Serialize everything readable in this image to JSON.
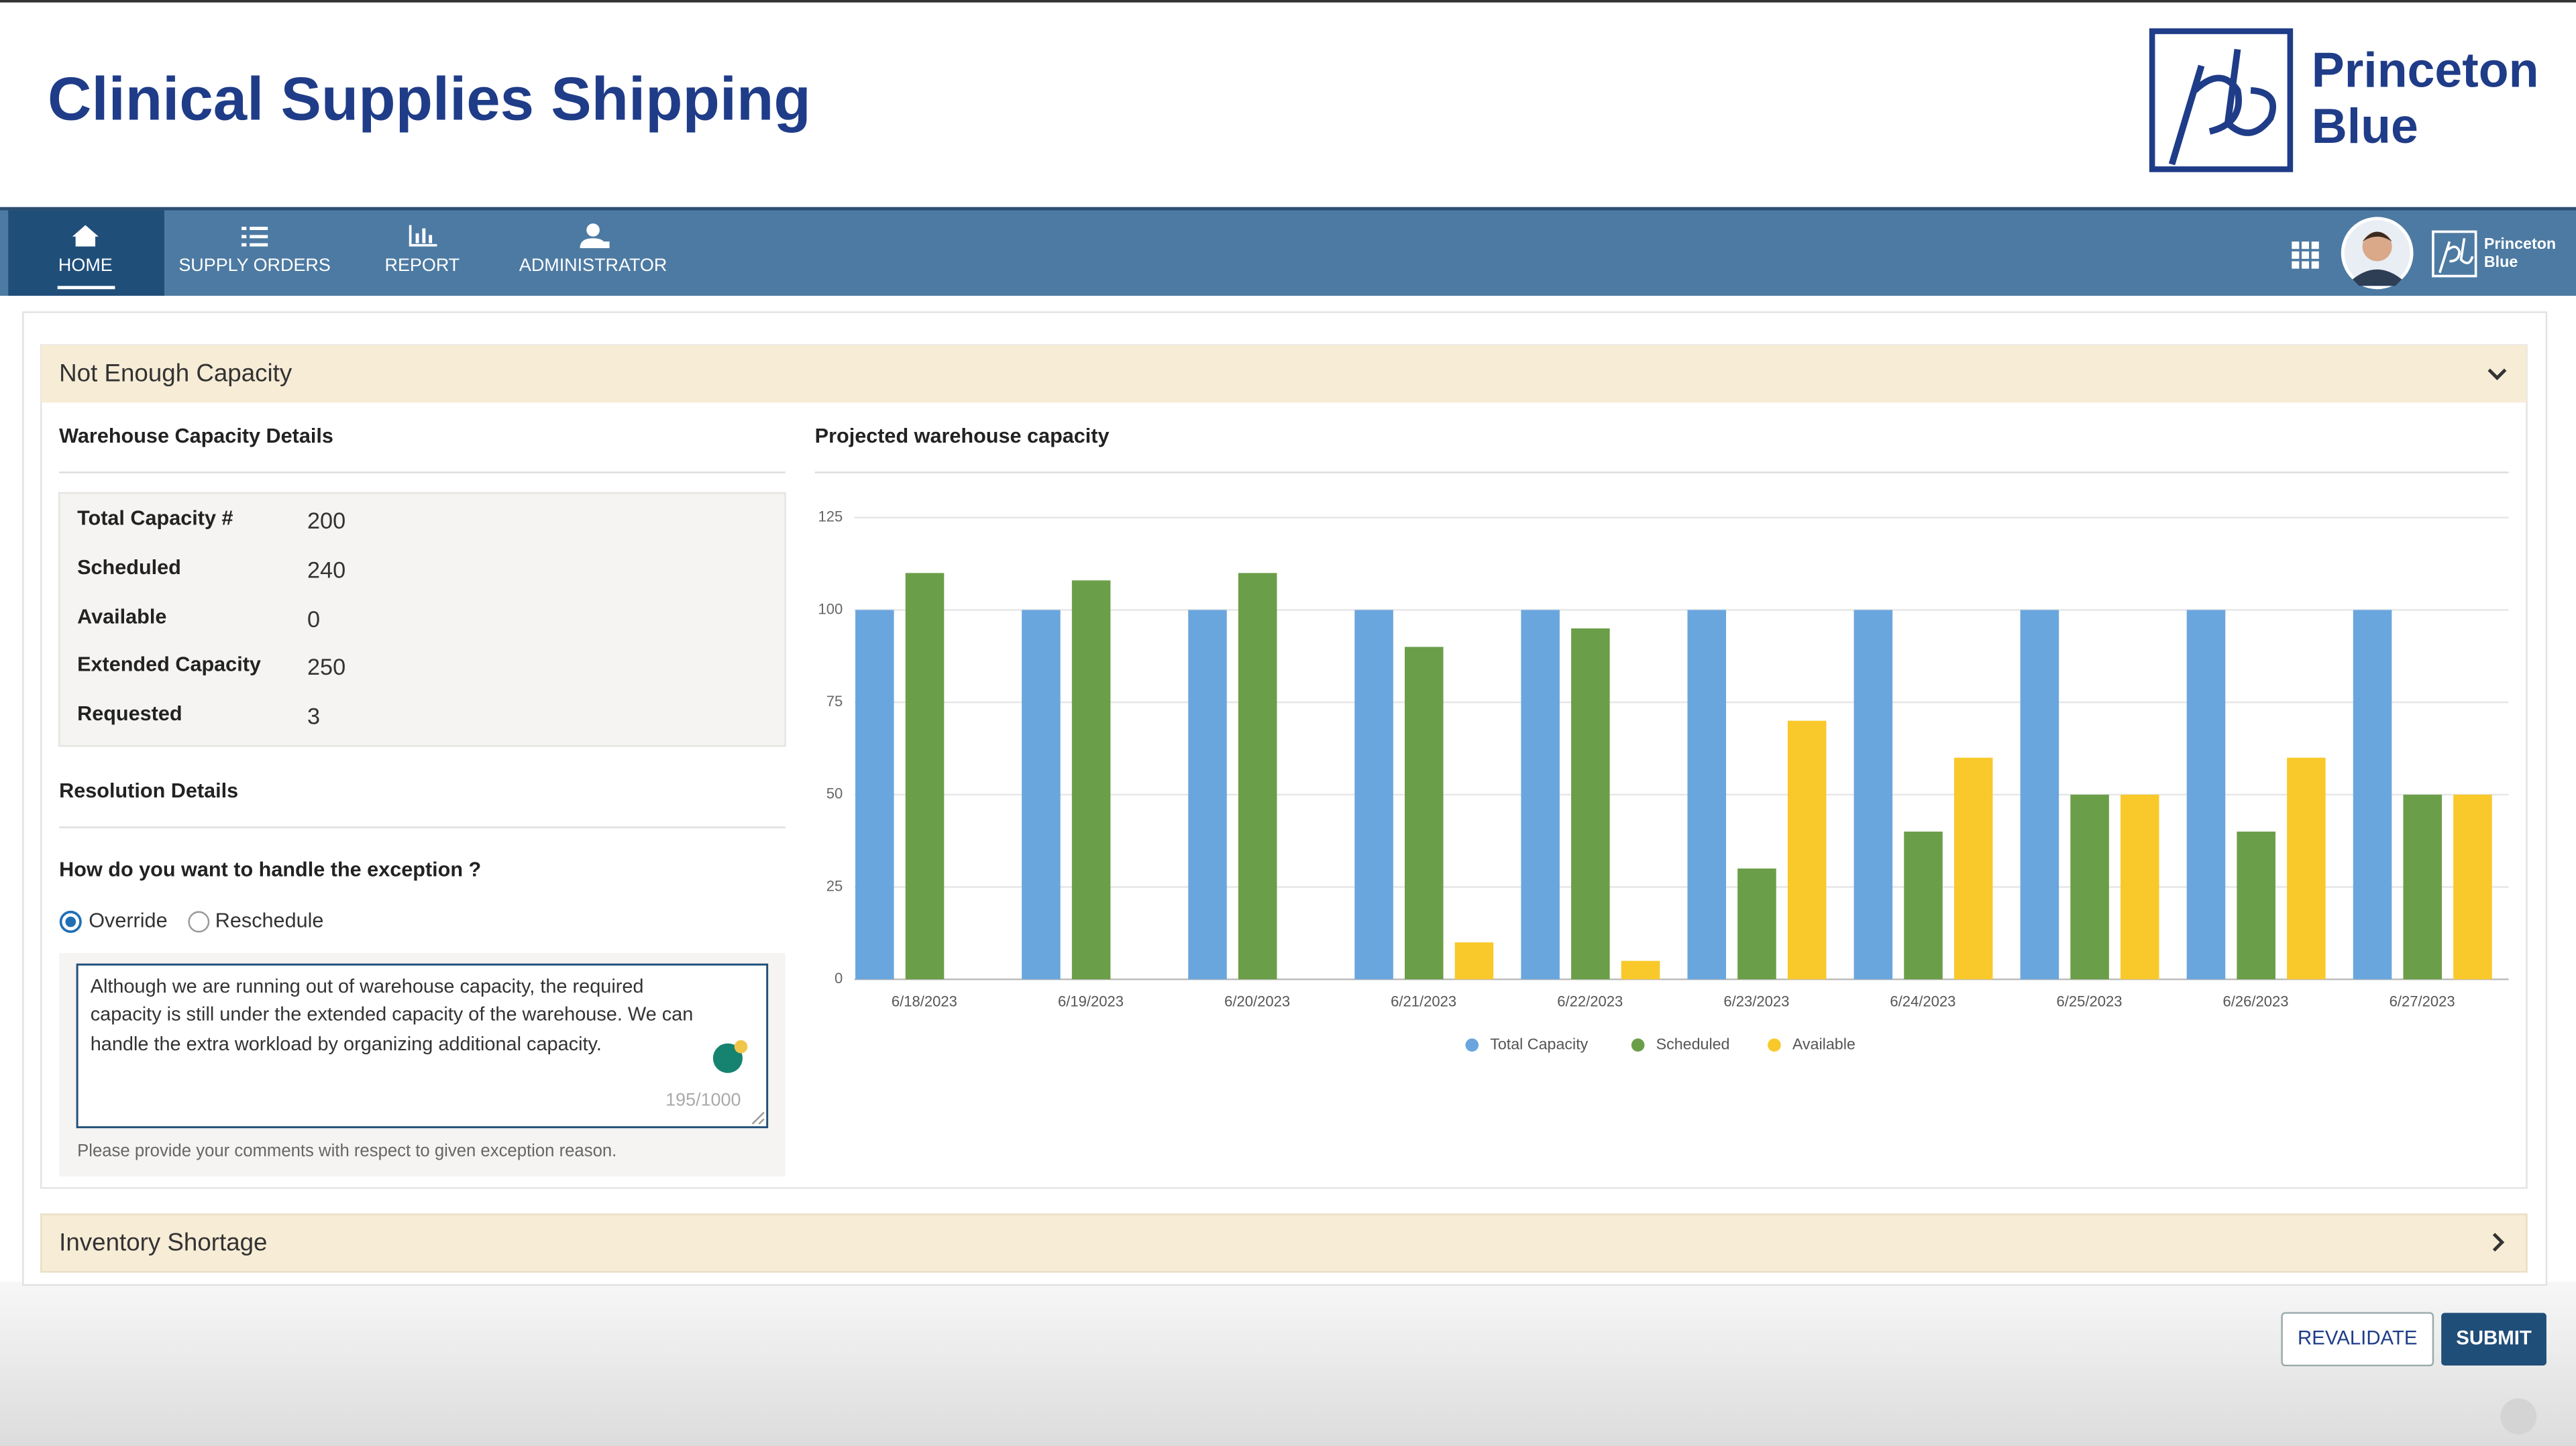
{
  "header": {
    "title": "Clinical Supplies Shipping",
    "logo": [
      "Princeton",
      "Blue"
    ]
  },
  "nav": {
    "items": [
      "HOME",
      "SUPPLY ORDERS",
      "REPORT",
      "ADMINISTRATOR"
    ],
    "brand": [
      "Princeton",
      "Blue"
    ]
  },
  "panel": {
    "title": "Not Enough Capacity",
    "details_title": "Warehouse Capacity Details",
    "details": [
      {
        "label": "Total Capacity #",
        "value": 200
      },
      {
        "label": "Scheduled",
        "value": 240
      },
      {
        "label": "Available",
        "value": 0
      },
      {
        "label": "Extended Capacity",
        "value": 250
      },
      {
        "label": "Requested",
        "value": 3
      }
    ],
    "resolution_title": "Resolution Details",
    "question": "How do you want to handle the exception ?",
    "options": [
      "Override",
      "Reschedule"
    ],
    "comment": [
      "Although we are running out of warehouse capacity, the required",
      "capacity is still under the extended capacity of the warehouse. We can",
      "handle the extra workload by organizing additional capacity."
    ],
    "counter": "195/1000",
    "hint": "Please provide your comments with respect to given exception reason."
  },
  "panel2": {
    "title": "Inventory Shortage"
  },
  "buttons": [
    "REVALIDATE",
    "SUBMIT"
  ],
  "chart_data": {
    "type": "bar",
    "title": "Projected warehouse capacity",
    "categories": [
      "6/18/2023",
      "6/19/2023",
      "6/20/2023",
      "6/21/2023",
      "6/22/2023",
      "6/23/2023",
      "6/24/2023",
      "6/25/2023",
      "6/26/2023",
      "6/27/2023"
    ],
    "series": [
      {
        "name": "Total Capacity",
        "color": "#6aa6de",
        "values": [
          100,
          100,
          100,
          100,
          100,
          100,
          100,
          100,
          100,
          100
        ]
      },
      {
        "name": "Scheduled",
        "color": "#6b9e48",
        "values": [
          110,
          108,
          110,
          90,
          95,
          30,
          40,
          50,
          40,
          50
        ]
      },
      {
        "name": "Available",
        "color": "#f9c82b",
        "values": [
          0,
          0,
          0,
          10,
          5,
          70,
          60,
          50,
          60,
          50
        ]
      }
    ],
    "ylim": [
      0,
      125
    ],
    "yticks": [
      0,
      25,
      50,
      75,
      100,
      125
    ],
    "grid": true
  }
}
